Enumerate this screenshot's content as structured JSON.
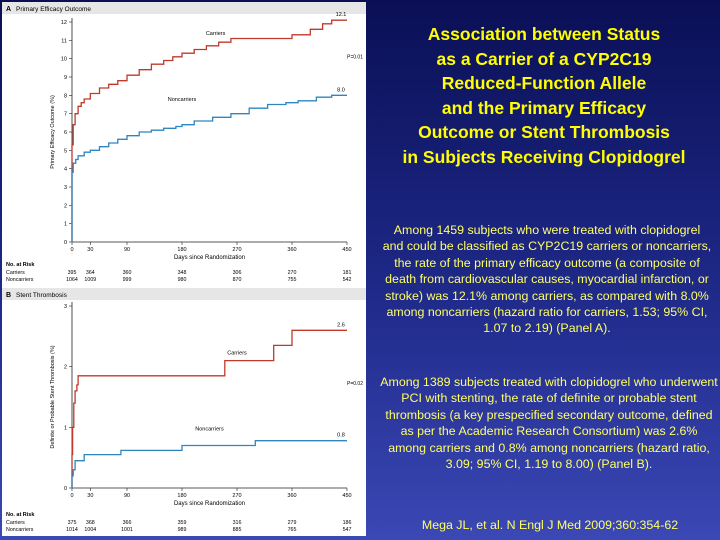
{
  "slide": {
    "title_lines": [
      "Association between Status",
      "as a Carrier of a CYP2C19",
      "Reduced-Function Allele",
      "and the Primary Efficacy",
      "Outcome or Stent Thrombosis",
      "in Subjects Receiving Clopidogrel"
    ],
    "paragraph1": "Among 1459 subjects who were treated with clopidogrel and could be classified as CYP2C19 carriers or noncarriers, the rate of the primary efficacy outcome (a composite of death from cardiovascular causes, myocardial infarction, or stroke) was 12.1% among carriers, as compared with 8.0% among noncarriers (hazard ratio for carriers, 1.53; 95% CI, 1.07 to 2.19) (Panel A).",
    "paragraph2": "Among 1389 subjects treated with clopidogrel who underwent PCI with stenting, the rate of definite or probable stent thrombosis (a key prespecified secondary outcome, defined as per the Academic Research Consortium) was 2.6% among carriers and 0.8% among noncarriers (hazard ratio, 3.09; 95% CI, 1.19 to 8.00) (Panel B).",
    "citation": "Mega JL, et al. N Engl J Med 2009;360:354-62"
  },
  "colors": {
    "carriers": "#c0392b",
    "noncarriers": "#2e86c1",
    "axis": "#222222"
  },
  "chart_data": [
    {
      "type": "line",
      "panel_letter": "A",
      "title": "Primary Efficacy Outcome",
      "xlabel": "Days since Randomization",
      "ylabel": "Primary Efficacy Outcome (%)",
      "xlim": [
        0,
        450
      ],
      "ylim": [
        0,
        12
      ],
      "x_ticks": [
        0,
        30,
        90,
        180,
        270,
        360,
        450
      ],
      "y_ticks": [
        0,
        1,
        2,
        3,
        4,
        5,
        6,
        7,
        8,
        9,
        10,
        11,
        12
      ],
      "series": [
        {
          "name": "Carriers",
          "end_label": "12.1",
          "points": [
            [
              0,
              0
            ],
            [
              0,
              5.3
            ],
            [
              2,
              6.4
            ],
            [
              5,
              7.0
            ],
            [
              10,
              7.4
            ],
            [
              15,
              7.6
            ],
            [
              20,
              7.8
            ],
            [
              30,
              8.1
            ],
            [
              45,
              8.4
            ],
            [
              60,
              8.6
            ],
            [
              75,
              8.8
            ],
            [
              90,
              9.1
            ],
            [
              110,
              9.4
            ],
            [
              130,
              9.7
            ],
            [
              150,
              9.9
            ],
            [
              165,
              10.1
            ],
            [
              180,
              10.3
            ],
            [
              200,
              10.5
            ],
            [
              220,
              10.7
            ],
            [
              240,
              10.9
            ],
            [
              260,
              11.1
            ],
            [
              300,
              11.1
            ],
            [
              340,
              11.1
            ],
            [
              360,
              11.3
            ],
            [
              390,
              11.6
            ],
            [
              410,
              11.9
            ],
            [
              425,
              12.1
            ],
            [
              450,
              12.1
            ]
          ]
        },
        {
          "name": "Noncarriers",
          "end_label": "8.0",
          "points": [
            [
              0,
              0
            ],
            [
              0,
              3.8
            ],
            [
              2,
              4.3
            ],
            [
              6,
              4.5
            ],
            [
              10,
              4.7
            ],
            [
              20,
              4.9
            ],
            [
              30,
              5.0
            ],
            [
              45,
              5.2
            ],
            [
              60,
              5.4
            ],
            [
              75,
              5.6
            ],
            [
              90,
              5.8
            ],
            [
              110,
              6.0
            ],
            [
              130,
              6.1
            ],
            [
              150,
              6.2
            ],
            [
              170,
              6.3
            ],
            [
              180,
              6.4
            ],
            [
              200,
              6.6
            ],
            [
              230,
              6.8
            ],
            [
              260,
              7.0
            ],
            [
              290,
              7.3
            ],
            [
              320,
              7.5
            ],
            [
              350,
              7.6
            ],
            [
              370,
              7.7
            ],
            [
              400,
              7.9
            ],
            [
              425,
              8.0
            ],
            [
              450,
              8.0
            ]
          ]
        }
      ],
      "p_value": "P=0.01",
      "at_risk": {
        "header": "No. at Risk",
        "rows": [
          {
            "label": "Carriers",
            "values": [
              "395",
              "364",
              "360",
              "348",
              "306",
              "270",
              "181"
            ]
          },
          {
            "label": "Noncarriers",
            "values": [
              "1064",
              "1009",
              "999",
              "980",
              "870",
              "755",
              "542"
            ]
          }
        ]
      }
    },
    {
      "type": "line",
      "panel_letter": "B",
      "title": "Stent Thrombosis",
      "xlabel": "Days since Randomization",
      "ylabel": "Definite or Probable Stent Thrombosis (%)",
      "xlim": [
        0,
        450
      ],
      "ylim": [
        0,
        3
      ],
      "x_ticks": [
        0,
        30,
        90,
        180,
        270,
        360,
        450
      ],
      "y_ticks": [
        0,
        1,
        2,
        3
      ],
      "series": [
        {
          "name": "Carriers",
          "end_label": "2.6",
          "points": [
            [
              0,
              0
            ],
            [
              0,
              0.55
            ],
            [
              1,
              1.0
            ],
            [
              3,
              1.4
            ],
            [
              5,
              1.6
            ],
            [
              8,
              1.7
            ],
            [
              10,
              1.85
            ],
            [
              250,
              1.85
            ],
            [
              250,
              2.1
            ],
            [
              330,
              2.1
            ],
            [
              330,
              2.35
            ],
            [
              360,
              2.35
            ],
            [
              360,
              2.6
            ],
            [
              450,
              2.6
            ]
          ]
        },
        {
          "name": "Noncarriers",
          "end_label": "0.8",
          "points": [
            [
              0,
              0
            ],
            [
              0,
              0.2
            ],
            [
              2,
              0.3
            ],
            [
              5,
              0.45
            ],
            [
              20,
              0.45
            ],
            [
              20,
              0.55
            ],
            [
              80,
              0.55
            ],
            [
              80,
              0.62
            ],
            [
              180,
              0.62
            ],
            [
              180,
              0.7
            ],
            [
              300,
              0.7
            ],
            [
              300,
              0.78
            ],
            [
              450,
              0.78
            ]
          ]
        }
      ],
      "p_value": "P=0.02",
      "at_risk": {
        "header": "No. at Risk",
        "rows": [
          {
            "label": "Carriers",
            "values": [
              "375",
              "368",
              "366",
              "359",
              "316",
              "279",
              "186"
            ]
          },
          {
            "label": "Noncarriers",
            "values": [
              "1014",
              "1004",
              "1001",
              "989",
              "885",
              "765",
              "547"
            ]
          }
        ]
      }
    }
  ]
}
